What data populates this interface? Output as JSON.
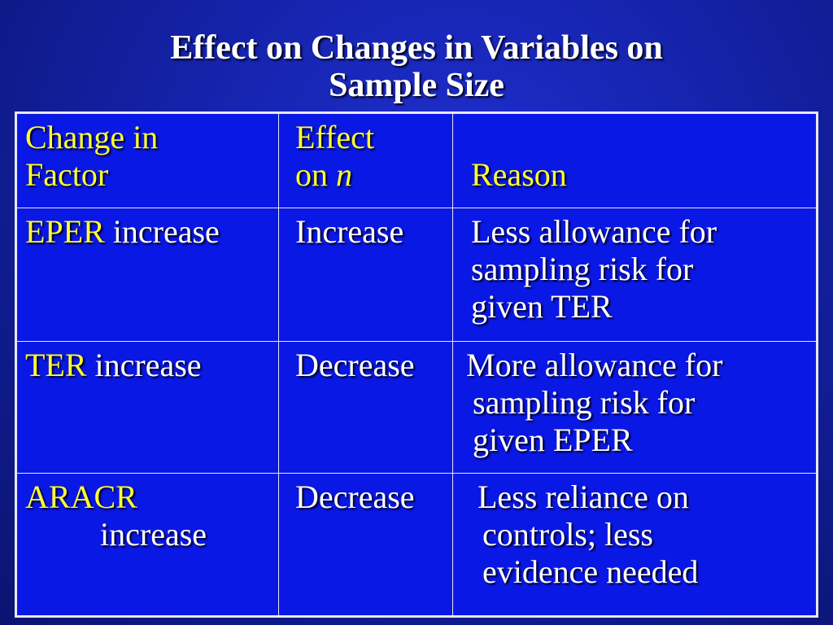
{
  "title": {
    "line1": "Effect on Changes in Variables on",
    "line2": "Sample Size"
  },
  "table": {
    "header": {
      "col1_line1": "Change in",
      "col1_line2": "Factor",
      "col2_line1": "Effect",
      "col2_line2_prefix": "on ",
      "col2_line2_var": "n",
      "col3": "Reason"
    },
    "rows": [
      {
        "factor_key": "EPER",
        "factor_rest": " increase",
        "effect": "Increase",
        "reason_line1": "Less allowance for",
        "reason_line2": "sampling risk for",
        "reason_line3": "given TER"
      },
      {
        "factor_key": "TER",
        "factor_rest": " increase",
        "effect": "Decrease",
        "reason_line1": "More allowance for",
        "reason_line2": "sampling risk for",
        "reason_line3": "given EPER"
      },
      {
        "factor_key": "ARACR",
        "factor_rest": "increase",
        "effect": "Decrease",
        "reason_line1": "Less reliance on",
        "reason_line2": "controls;  less",
        "reason_line3": "evidence needed"
      }
    ]
  }
}
